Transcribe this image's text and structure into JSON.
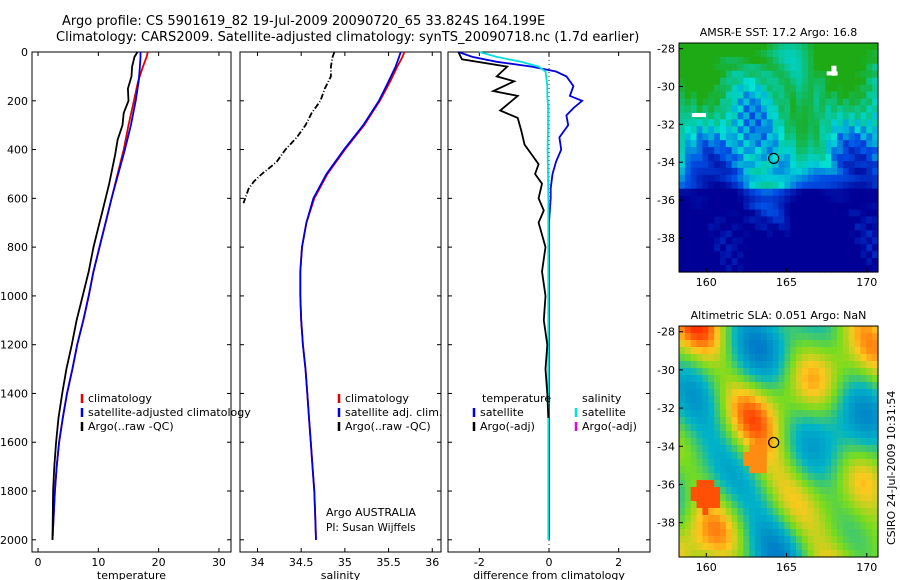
{
  "header": {
    "line1": "Argo profile: CS 5901619_82 19-Jul-2009 20090720_65 33.824S 164.199E",
    "line2": "Climatology: CARS2009. Satellite-adjusted climatology: synTS_20090718.nc (1.7d earlier)"
  },
  "side_label": "CSIRO 24-Jul-2009 10:31:54",
  "credit": {
    "line1": "Argo AUSTRALIA",
    "line2": "PI: Susan Wijffels"
  },
  "colors": {
    "climatology": "#e00000",
    "satellite": "#0000e0",
    "argo": "#000000",
    "sat_salinity": "#00e0e0",
    "argo_salinity": "#e000e0"
  },
  "chart_data": [
    {
      "type": "line",
      "xlabel": "temperature",
      "xlim": [
        -1,
        32
      ],
      "ylim": [
        2050,
        0
      ],
      "xticks": [
        "0",
        "10",
        "20",
        "30"
      ],
      "yticks": [
        "0",
        "200",
        "400",
        "600",
        "800",
        "1000",
        "1200",
        "1400",
        "1600",
        "1800",
        "2000"
      ],
      "legend": [
        "climatology",
        "satellite-adjusted climatology",
        "Argo(..raw -QC)"
      ],
      "series": [
        {
          "name": "climatology",
          "color": "#e00000",
          "x": [
            18.2,
            18.0,
            17.4,
            16.6,
            15.9,
            15.0,
            14.2,
            13.2,
            12.2,
            11.2,
            10.2,
            9.2,
            8.4,
            7.5,
            6.5,
            5.7,
            4.8,
            4.1,
            3.5,
            3.1,
            2.8,
            2.6,
            2.4
          ],
          "y": [
            0,
            20,
            60,
            120,
            200,
            300,
            400,
            500,
            600,
            700,
            800,
            900,
            1000,
            1100,
            1200,
            1300,
            1400,
            1500,
            1600,
            1700,
            1800,
            1900,
            2000
          ]
        },
        {
          "name": "satellite-adjusted climatology",
          "color": "#0000e0",
          "x": [
            17.0,
            17.0,
            16.9,
            16.7,
            16.2,
            15.4,
            14.4,
            13.3,
            12.2,
            11.2,
            10.2,
            9.2,
            8.4,
            7.5,
            6.5,
            5.7,
            4.8,
            4.1,
            3.5,
            3.1,
            2.8,
            2.6,
            2.4
          ],
          "y": [
            0,
            20,
            60,
            120,
            200,
            300,
            400,
            500,
            600,
            700,
            800,
            900,
            1000,
            1100,
            1200,
            1300,
            1400,
            1500,
            1600,
            1700,
            1800,
            1900,
            2000
          ]
        },
        {
          "name": "Argo(..raw -QC)",
          "color": "#000000",
          "x": [
            16.5,
            16.0,
            15.6,
            15.5,
            14.9,
            15.0,
            14.2,
            14.0,
            13.2,
            12.8,
            12.3,
            11.8,
            11.2,
            10.6,
            10.0,
            9.2,
            8.4,
            7.4,
            6.4,
            5.6,
            4.7,
            4.0,
            3.4,
            3.0,
            2.7,
            2.5,
            2.4
          ],
          "y": [
            0,
            20,
            60,
            100,
            150,
            200,
            250,
            300,
            360,
            420,
            480,
            540,
            600,
            660,
            720,
            800,
            900,
            1000,
            1100,
            1200,
            1300,
            1400,
            1500,
            1600,
            1700,
            1800,
            2000
          ]
        }
      ]
    },
    {
      "type": "line",
      "xlabel": "salinity",
      "xlim": [
        33.8,
        36.1
      ],
      "ylim": [
        2050,
        0
      ],
      "xticks": [
        "34",
        "34.5",
        "35",
        "35.5",
        "36"
      ],
      "legend": [
        "climatology",
        "satellite adj. clim.",
        "Argo(..raw -QC)"
      ],
      "series": [
        {
          "name": "climatology",
          "color": "#e00000",
          "x": [
            35.68,
            35.66,
            35.6,
            35.52,
            35.4,
            35.22,
            35.0,
            34.8,
            34.65,
            34.56,
            34.51,
            34.49,
            34.49,
            34.5,
            34.52,
            34.55,
            34.57,
            34.59,
            34.61,
            34.63,
            34.65,
            34.66,
            34.67
          ],
          "y": [
            0,
            20,
            60,
            120,
            200,
            300,
            400,
            500,
            600,
            700,
            800,
            900,
            1000,
            1100,
            1200,
            1300,
            1400,
            1500,
            1600,
            1700,
            1800,
            1900,
            2000
          ]
        },
        {
          "name": "satellite adj. clim.",
          "color": "#0000e0",
          "x": [
            35.64,
            35.62,
            35.58,
            35.5,
            35.39,
            35.21,
            34.99,
            34.79,
            34.64,
            34.56,
            34.51,
            34.49,
            34.49,
            34.5,
            34.52,
            34.55,
            34.57,
            34.59,
            34.61,
            34.63,
            34.65,
            34.66,
            34.67
          ],
          "y": [
            0,
            20,
            60,
            120,
            200,
            300,
            400,
            500,
            600,
            700,
            800,
            900,
            1000,
            1100,
            1200,
            1300,
            1400,
            1500,
            1600,
            1700,
            1800,
            1900,
            2000
          ]
        },
        {
          "name": "Argo(..raw -QC)",
          "color": "#000000",
          "x": [
            34.88,
            34.86,
            34.84,
            34.84,
            34.77,
            34.72,
            34.62,
            34.55,
            34.45,
            34.32,
            34.22,
            34.12,
            34.05,
            33.96,
            33.9,
            33.86,
            33.84
          ],
          "y": [
            0,
            20,
            60,
            100,
            150,
            200,
            250,
            300,
            350,
            400,
            450,
            480,
            500,
            530,
            560,
            600,
            620
          ]
        }
      ]
    },
    {
      "type": "line",
      "xlabel": "difference from climatology",
      "xlim": [
        -2.9,
        2.9
      ],
      "ylim": [
        2050,
        0
      ],
      "xticks": [
        "-2",
        "0",
        "2"
      ],
      "legend": [
        "temperature",
        "salinity",
        "satellite",
        "satellite",
        "Argo(-adj)",
        "Argo(-adj)"
      ],
      "series": [
        {
          "name": "satellite",
          "color": "#0000e0",
          "x": [
            -2.6,
            -2.2,
            -1.5,
            -0.5,
            0.2,
            0.5,
            0.7,
            0.6,
            0.95,
            0.7,
            0.5,
            0.55,
            0.3,
            0.35,
            0.2,
            0.1,
            0.05,
            0.05,
            0.0,
            0.0,
            0.0,
            0.0,
            0.0,
            0.0,
            0.0,
            0.0,
            0.0,
            0.0
          ],
          "y": [
            0,
            20,
            40,
            60,
            80,
            100,
            140,
            180,
            200,
            230,
            260,
            300,
            350,
            400,
            450,
            500,
            560,
            600,
            700,
            800,
            900,
            1000,
            1100,
            1200,
            1400,
            1600,
            1800,
            2000
          ]
        },
        {
          "name": "sat-salinity",
          "color": "#00e0e0",
          "x": [
            -2.0,
            -1.5,
            -0.8,
            -0.3,
            -0.1,
            -0.08,
            -0.05,
            -0.05,
            -0.03,
            -0.03,
            -0.04,
            -0.03,
            -0.02,
            -0.02,
            -0.02,
            -0.02,
            -0.02,
            -0.02,
            -0.02,
            -0.02,
            -0.02,
            -0.02,
            -0.02,
            -0.02,
            -0.02
          ],
          "y": [
            0,
            20,
            40,
            60,
            80,
            100,
            140,
            180,
            220,
            300,
            400,
            500,
            600,
            700,
            800,
            900,
            1000,
            1100,
            1200,
            1300,
            1400,
            1500,
            1600,
            1800,
            2000
          ]
        },
        {
          "name": "Argo(-adj)",
          "color": "#000000",
          "x": [
            -2.6,
            -2.5,
            -1.2,
            -1.5,
            -1.0,
            -1.6,
            -0.9,
            -1.4,
            -0.9,
            -0.8,
            -0.7,
            -0.5,
            -0.3,
            -0.4,
            -0.2,
            -0.3,
            -0.15,
            -0.3,
            -0.1,
            -0.2,
            -0.1,
            -0.15,
            -0.05,
            -0.1,
            -0.05,
            -0.02
          ],
          "y": [
            0,
            30,
            60,
            100,
            120,
            160,
            180,
            240,
            270,
            320,
            380,
            420,
            460,
            500,
            540,
            600,
            650,
            700,
            800,
            900,
            1000,
            1100,
            1200,
            1300,
            1400,
            1500
          ]
        }
      ]
    },
    {
      "type": "heatmap",
      "title": "AMSR-E SST: 17.2 Argo: 16.8",
      "xlim": [
        158.3,
        170.7
      ],
      "ylim": [
        -39.8,
        -27.7
      ],
      "xticks": [
        "160",
        "165",
        "170"
      ],
      "yticks": [
        "-28",
        "-30",
        "-32",
        "-34",
        "-36",
        "-38"
      ],
      "marker": [
        164.2,
        -33.8
      ]
    },
    {
      "type": "heatmap",
      "title": "Altimetric SLA: 0.051 Argo: NaN",
      "xlim": [
        158.3,
        170.7
      ],
      "ylim": [
        -39.8,
        -27.7
      ],
      "xticks": [
        "160",
        "165",
        "170"
      ],
      "yticks": [
        "-28",
        "-30",
        "-32",
        "-34",
        "-36",
        "-38"
      ],
      "marker": [
        164.2,
        -33.8
      ]
    }
  ]
}
